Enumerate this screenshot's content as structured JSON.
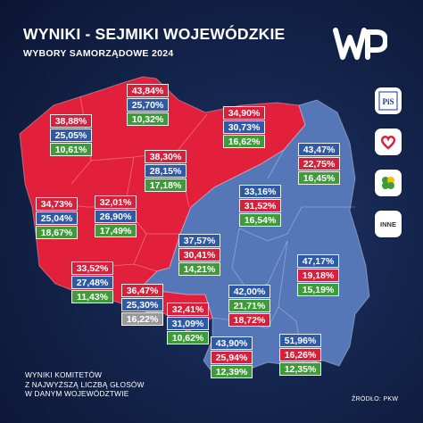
{
  "header": {
    "title": "WYNIKI - SEJMIKI WOJEWÓDZKIE",
    "subtitle": "WYBORY SAMORZĄDOWE  2024"
  },
  "brand": {
    "logo": "WP"
  },
  "legend": [
    {
      "icon": "pis-logo-icon",
      "label": "PiS"
    },
    {
      "icon": "heart-icon",
      "label": ""
    },
    {
      "icon": "clover-icon",
      "label": ""
    },
    {
      "icon": "other-icon",
      "label": "INNE"
    }
  ],
  "colors": {
    "pis": "#2e5aa8",
    "ko": "#d8203b",
    "td": "#3f9b3a",
    "other": "#9a9a9a",
    "map_ko_region": "#e3203c",
    "map_pis_region": "#5577b8"
  },
  "regions": [
    {
      "name": "pomorskie",
      "values": [
        {
          "v": "43,84%",
          "party": "ko"
        },
        {
          "v": "25,70%",
          "party": "pis"
        },
        {
          "v": "10,32%",
          "party": "td"
        }
      ]
    },
    {
      "name": "zachodniopomorskie",
      "values": [
        {
          "v": "38,88%",
          "party": "ko"
        },
        {
          "v": "25,05%",
          "party": "pis"
        },
        {
          "v": "10,61%",
          "party": "td"
        }
      ]
    },
    {
      "name": "warmińsko-mazurskie",
      "values": [
        {
          "v": "34,90%",
          "party": "ko"
        },
        {
          "v": "30,73%",
          "party": "pis"
        },
        {
          "v": "16,62%",
          "party": "td"
        }
      ]
    },
    {
      "name": "podlaskie",
      "values": [
        {
          "v": "43,47%",
          "party": "pis"
        },
        {
          "v": "22,75%",
          "party": "ko"
        },
        {
          "v": "16,45%",
          "party": "td"
        }
      ]
    },
    {
      "name": "kujawsko-pomorskie",
      "values": [
        {
          "v": "38,30%",
          "party": "ko"
        },
        {
          "v": "28,15%",
          "party": "pis"
        },
        {
          "v": "17,18%",
          "party": "td"
        }
      ]
    },
    {
      "name": "mazowieckie",
      "values": [
        {
          "v": "33,16%",
          "party": "pis"
        },
        {
          "v": "31,52%",
          "party": "ko"
        },
        {
          "v": "16,54%",
          "party": "td"
        }
      ]
    },
    {
      "name": "lubuskie",
      "values": [
        {
          "v": "34,73%",
          "party": "ko"
        },
        {
          "v": "25,04%",
          "party": "pis"
        },
        {
          "v": "18,67%",
          "party": "td"
        }
      ]
    },
    {
      "name": "wielkopolskie",
      "values": [
        {
          "v": "32,01%",
          "party": "ko"
        },
        {
          "v": "26,90%",
          "party": "pis"
        },
        {
          "v": "17,49%",
          "party": "td"
        }
      ]
    },
    {
      "name": "łódzkie",
      "values": [
        {
          "v": "37,57%",
          "party": "pis"
        },
        {
          "v": "30,41%",
          "party": "ko"
        },
        {
          "v": "14,21%",
          "party": "td"
        }
      ]
    },
    {
      "name": "lubelskie",
      "values": [
        {
          "v": "47,17%",
          "party": "pis"
        },
        {
          "v": "19,18%",
          "party": "ko"
        },
        {
          "v": "15,19%",
          "party": "td"
        }
      ]
    },
    {
      "name": "dolnośląskie",
      "values": [
        {
          "v": "33,52%",
          "party": "ko"
        },
        {
          "v": "27,48%",
          "party": "pis"
        },
        {
          "v": "11,43%",
          "party": "td"
        }
      ]
    },
    {
      "name": "opolskie",
      "values": [
        {
          "v": "36,47%",
          "party": "ko"
        },
        {
          "v": "25,30%",
          "party": "pis"
        },
        {
          "v": "16,22%",
          "party": "other"
        }
      ]
    },
    {
      "name": "śląskie",
      "values": [
        {
          "v": "32,41%",
          "party": "ko"
        },
        {
          "v": "31,09%",
          "party": "pis"
        },
        {
          "v": "10,62%",
          "party": "td"
        }
      ]
    },
    {
      "name": "świętokrzyskie",
      "values": [
        {
          "v": "42,00%",
          "party": "pis"
        },
        {
          "v": "21,71%",
          "party": "td"
        },
        {
          "v": "18,72%",
          "party": "ko"
        }
      ]
    },
    {
      "name": "małopolskie",
      "values": [
        {
          "v": "43,90%",
          "party": "pis"
        },
        {
          "v": "25,94%",
          "party": "ko"
        },
        {
          "v": "12,39%",
          "party": "td"
        }
      ]
    },
    {
      "name": "podkarpackie",
      "values": [
        {
          "v": "51,96%",
          "party": "pis"
        },
        {
          "v": "16,26%",
          "party": "ko"
        },
        {
          "v": "12,35%",
          "party": "td"
        }
      ]
    }
  ],
  "footer": {
    "note_line1": "WYNIKI KOMITETÓW",
    "note_line2": "Z NAJWYŻSZĄ LICZBĄ GŁOSÓW",
    "note_line3": "W DANYM WOJEWÓDZTWIE",
    "source": "ŹRÓDŁO: PKW"
  }
}
